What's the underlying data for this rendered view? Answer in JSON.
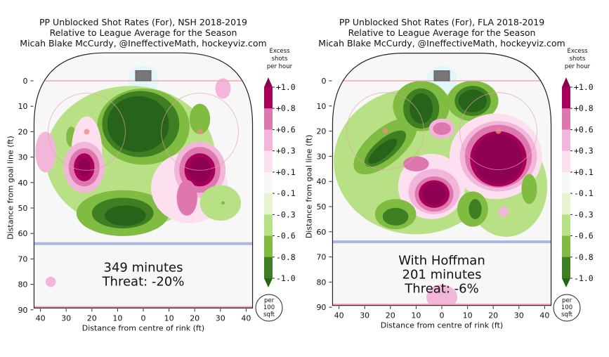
{
  "colors": {
    "levels": [
      -1.0,
      -0.8,
      -0.6,
      -0.3,
      -0.1,
      0.1,
      0.3,
      0.6,
      0.8,
      1.0
    ],
    "band_colors": [
      "#276419",
      "#3d7f22",
      "#7fbc41",
      "#b8e186",
      "#e6f5d0",
      "#f7f7f7",
      "#fde0ef",
      "#f1b6da",
      "#de77ae",
      "#a8005a",
      "#8e0152"
    ],
    "rink_background": "#f7f7f7",
    "goal_line": "#f4a6b5",
    "blue_line": "#a9b8dc"
  },
  "colorbar": {
    "title_lines": [
      "Excess",
      "shots",
      "per hour"
    ],
    "tick_labels": [
      "+1.0",
      "+0.8",
      "+0.6",
      "+0.3",
      "+0.1",
      "-0.1",
      "-0.3",
      "-0.6",
      "-0.8",
      "-1.0"
    ],
    "unit_lines": [
      "per",
      "100",
      "sqft"
    ]
  },
  "chart_data": [
    {
      "type": "heatmap",
      "title_lines": [
        "PP Unblocked Shot Rates (For), NSH 2018-2019",
        "Relative to League Average for the Season",
        "Micah Blake McCurdy, @IneffectiveMath, hockeyviz.com"
      ],
      "xlabel": "Distance from centre of rink (ft)",
      "ylabel": "Distance from goal line (ft)",
      "x_ticks": [
        "40",
        "30",
        "20",
        "10",
        "0",
        "10",
        "20",
        "30",
        "40"
      ],
      "y_ticks": [
        "0",
        "10",
        "20",
        "30",
        "40",
        "50",
        "60",
        "70",
        "80",
        "90"
      ],
      "xlim": [
        -42.5,
        42.5
      ],
      "ylim": [
        0,
        90
      ],
      "annotation_lines": [
        "349 minutes",
        "Threat: -20%"
      ],
      "regions": [
        {
          "x": -5,
          "y": 30,
          "rx": 33,
          "ry": 28,
          "level": -0.3
        },
        {
          "x": 0,
          "y": 18,
          "rx": 18,
          "ry": 15,
          "level": -0.6
        },
        {
          "x": -1,
          "y": 17,
          "rx": 15,
          "ry": 13,
          "level": -0.8
        },
        {
          "x": -2,
          "y": 17,
          "rx": 12,
          "ry": 11,
          "level": -1.0
        },
        {
          "x": -8,
          "y": 52,
          "rx": 18,
          "ry": 9,
          "level": -0.6
        },
        {
          "x": -8,
          "y": 52,
          "rx": 12,
          "ry": 6,
          "level": -0.8
        },
        {
          "x": -7,
          "y": 53,
          "rx": 8,
          "ry": 4,
          "level": -1.0
        },
        {
          "x": 22,
          "y": 15,
          "rx": 4,
          "ry": 6,
          "level": -0.6
        },
        {
          "x": -28,
          "y": 22,
          "rx": 2,
          "ry": 4,
          "level": -0.6
        },
        {
          "x": -22,
          "y": 28,
          "rx": 6,
          "ry": 14,
          "level": 0.1
        },
        {
          "x": -23,
          "y": 34,
          "rx": 8,
          "ry": 10,
          "level": 0.3
        },
        {
          "x": -23,
          "y": 34,
          "rx": 6,
          "ry": 7.5,
          "level": 0.6
        },
        {
          "x": -23,
          "y": 34,
          "rx": 4,
          "ry": 5.5,
          "level": 0.8
        },
        {
          "x": -23,
          "y": 34,
          "rx": 2.5,
          "ry": 3.5,
          "level": 1.0
        },
        {
          "x": 18,
          "y": 42,
          "rx": 15,
          "ry": 14,
          "level": 0.1
        },
        {
          "x": 22,
          "y": 35,
          "rx": 10,
          "ry": 11,
          "level": 0.3
        },
        {
          "x": 22,
          "y": 35,
          "rx": 8,
          "ry": 9,
          "level": 0.6
        },
        {
          "x": 22,
          "y": 35,
          "rx": 6,
          "ry": 6.5,
          "level": 0.8
        },
        {
          "x": 22,
          "y": 35,
          "rx": 4.5,
          "ry": 5,
          "level": 1.0
        },
        {
          "x": 17,
          "y": 46,
          "rx": 4,
          "ry": 7,
          "level": 0.6
        },
        {
          "x": 31,
          "y": 3,
          "rx": 3,
          "ry": 4,
          "level": 0.3
        },
        {
          "x": -38,
          "y": 28,
          "rx": 4,
          "ry": 8,
          "level": 0.3
        },
        {
          "x": -36,
          "y": 79,
          "rx": 2,
          "ry": 2,
          "level": 0.3
        },
        {
          "x": 30,
          "y": 48,
          "rx": 8,
          "ry": 7,
          "level": -0.3
        },
        {
          "x": 31,
          "y": 48,
          "rx": 0.7,
          "ry": 0.7,
          "level": -0.6
        }
      ]
    },
    {
      "type": "heatmap",
      "title_lines": [
        "PP Unblocked Shot Rates (For), FLA 2018-2019",
        "Relative to League Average for the Season",
        "Micah Blake McCurdy, @IneffectiveMath, hockeyviz.com"
      ],
      "xlabel": "Distance from centre of rink (ft)",
      "ylabel": "Distance from goal line (ft)",
      "x_ticks": [
        "40",
        "30",
        "20",
        "10",
        "0",
        "10",
        "20",
        "30",
        "40"
      ],
      "y_ticks": [
        "0",
        "10",
        "20",
        "30",
        "40",
        "50",
        "60",
        "70",
        "80",
        "90"
      ],
      "xlim": [
        -42.5,
        42.5
      ],
      "ylim": [
        0,
        90
      ],
      "annotation_lines": [
        "With Hoffman",
        "201 minutes",
        "Threat: -6%"
      ],
      "regions": [
        {
          "x": -10,
          "y": 32,
          "rx": 32,
          "ry": 29,
          "level": -0.3
        },
        {
          "x": 25,
          "y": 42,
          "rx": 16,
          "ry": 20,
          "level": -0.3
        },
        {
          "x": -8,
          "y": 10,
          "rx": 11,
          "ry": 10,
          "level": -0.6
        },
        {
          "x": 12,
          "y": 8,
          "rx": 10,
          "ry": 8,
          "level": -0.6
        },
        {
          "x": -22,
          "y": 26,
          "rx": 15,
          "ry": 7,
          "level": -0.6,
          "angle": -40
        },
        {
          "x": -8,
          "y": 11,
          "rx": 7,
          "ry": 8,
          "level": -0.8
        },
        {
          "x": 12,
          "y": 8,
          "rx": 7,
          "ry": 6,
          "level": -0.8
        },
        {
          "x": -22,
          "y": 27,
          "rx": 10,
          "ry": 4,
          "level": -0.8,
          "angle": -40
        },
        {
          "x": -8,
          "y": 11,
          "rx": 4.5,
          "ry": 6,
          "level": -1.0
        },
        {
          "x": 12,
          "y": 8,
          "rx": 5.5,
          "ry": 4.5,
          "level": -1.0
        },
        {
          "x": -23,
          "y": 28,
          "rx": 7,
          "ry": 2.5,
          "level": -1.0,
          "angle": -40
        },
        {
          "x": 21,
          "y": 30,
          "rx": 18,
          "ry": 17,
          "level": 0.1
        },
        {
          "x": 22,
          "y": 30,
          "rx": 15,
          "ry": 14,
          "level": 0.3
        },
        {
          "x": 22,
          "y": 30,
          "rx": 13,
          "ry": 12.5,
          "level": 0.6
        },
        {
          "x": 22,
          "y": 31,
          "rx": 11,
          "ry": 11,
          "level": 0.8
        },
        {
          "x": 22,
          "y": 31,
          "rx": 9.5,
          "ry": 10,
          "level": 1.0
        },
        {
          "x": -4,
          "y": 42,
          "rx": 13,
          "ry": 13,
          "level": 0.1
        },
        {
          "x": -3,
          "y": 44,
          "rx": 10,
          "ry": 9,
          "level": 0.3
        },
        {
          "x": -3,
          "y": 45,
          "rx": 7.5,
          "ry": 7,
          "level": 0.6
        },
        {
          "x": -3,
          "y": 45,
          "rx": 6,
          "ry": 5.5,
          "level": 0.8
        },
        {
          "x": -3,
          "y": 45,
          "rx": 4.5,
          "ry": 4.5,
          "level": 1.0
        },
        {
          "x": -10,
          "y": 33,
          "rx": 5,
          "ry": 3,
          "level": 0.6
        },
        {
          "x": 0,
          "y": 19,
          "rx": 5,
          "ry": 4,
          "level": 0.3
        },
        {
          "x": 0,
          "y": 19,
          "rx": 3.5,
          "ry": 2.5,
          "level": 0.6
        },
        {
          "x": -18,
          "y": 53,
          "rx": 8,
          "ry": 6,
          "level": -0.6
        },
        {
          "x": -18,
          "y": 54,
          "rx": 5,
          "ry": 3.5,
          "level": -0.8
        },
        {
          "x": 12,
          "y": 51,
          "rx": 6,
          "ry": 7,
          "level": -0.6
        },
        {
          "x": 13,
          "y": 51,
          "rx": 2.5,
          "ry": 4,
          "level": -0.8
        },
        {
          "x": 34,
          "y": 43,
          "rx": 3,
          "ry": 6,
          "level": -0.6
        },
        {
          "x": 0,
          "y": 86,
          "rx": 6,
          "ry": 5,
          "level": 0.3
        },
        {
          "x": 24,
          "y": 52,
          "rx": 2,
          "ry": 2,
          "level": 0.3
        }
      ]
    }
  ]
}
